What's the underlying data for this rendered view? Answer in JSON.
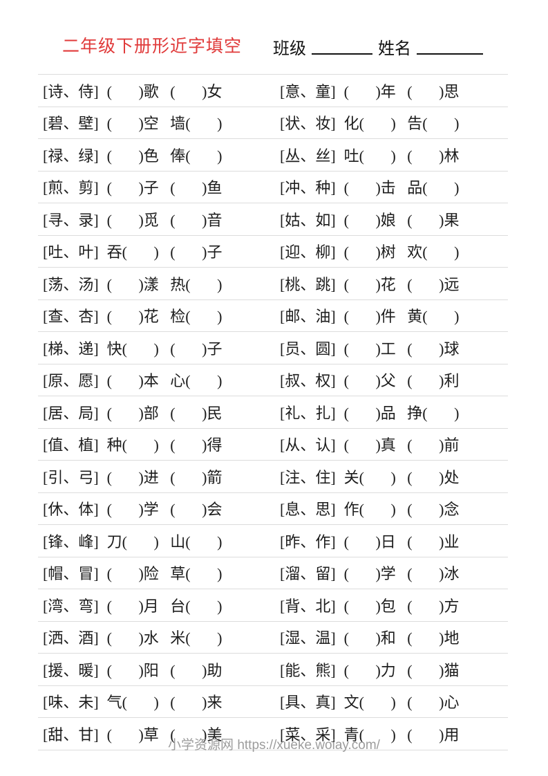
{
  "page": {
    "title": "二年级下册形近字填空",
    "class_label": "班级",
    "name_label": "姓名",
    "footer": "小学资源网 https://xueke.woiay.com/"
  },
  "colors": {
    "title_red": "#e03a3a",
    "rule_line": "#dcdcdc",
    "body_text": "#1c1c1c",
    "footer_gray": "#9c9c9c"
  },
  "rows": [
    {
      "lb": "[诗、侍]",
      "lc": "(       )歌   (       )女",
      "rb": "[意、童]",
      "rc": "(       )年   (       )思"
    },
    {
      "lb": "[碧、壁]",
      "lc": "(       )空   墙(       )",
      "rb": "[状、妆]",
      "rc": "化(       )   告(       )"
    },
    {
      "lb": "[禄、绿]",
      "lc": "(       )色   俸(       )",
      "rb": "[丛、丝]",
      "rc": "吐(       )   (       )林"
    },
    {
      "lb": "[煎、剪]",
      "lc": "(       )子   (       )鱼",
      "rb": "[冲、种]",
      "rc": "(       )击   品(       )"
    },
    {
      "lb": "[寻、录]",
      "lc": "(       )觅   (       )音",
      "rb": "[姑、如]",
      "rc": "(       )娘   (       )果"
    },
    {
      "lb": "[吐、叶]",
      "lc": "吞(       )   (       )子",
      "rb": "[迎、柳]",
      "rc": "(       )树   欢(       )"
    },
    {
      "lb": "[荡、汤]",
      "lc": "(       )漾   热(       )",
      "rb": "[桃、跳]",
      "rc": "(       )花   (       )远"
    },
    {
      "lb": "[查、杏]",
      "lc": "(       )花   检(       )",
      "rb": "[邮、油]",
      "rc": "(       )件   黄(       )"
    },
    {
      "lb": "[梯、递]",
      "lc": "快(       )   (       )子",
      "rb": "[员、圆]",
      "rc": "(       )工   (       )球"
    },
    {
      "lb": "[原、愿]",
      "lc": "(       )本   心(       )",
      "rb": "[叔、权]",
      "rc": "(       )父   (       )利"
    },
    {
      "lb": "[居、局]",
      "lc": "(       )部   (       )民",
      "rb": "[礼、扎]",
      "rc": "(       )品   挣(       )"
    },
    {
      "lb": "[值、植]",
      "lc": "种(       )   (       )得",
      "rb": "[从、认]",
      "rc": "(       )真   (       )前"
    },
    {
      "lb": "[引、弓]",
      "lc": "(       )进   (       )箭",
      "rb": "[注、住]",
      "rc": "关(       )   (       )处"
    },
    {
      "lb": "[休、体]",
      "lc": "(       )学   (       )会",
      "rb": "[息、思]",
      "rc": "作(       )   (       )念"
    },
    {
      "lb": "[锋、峰]",
      "lc": "刀(       )   山(       )",
      "rb": "[昨、作]",
      "rc": "(       )日   (       )业"
    },
    {
      "lb": "[帽、冒]",
      "lc": "(       )险   草(       )",
      "rb": "[溜、留]",
      "rc": "(       )学   (       )冰"
    },
    {
      "lb": "[湾、弯]",
      "lc": "(       )月   台(       )",
      "rb": "[背、北]",
      "rc": "(       )包   (       )方"
    },
    {
      "lb": "[洒、酒]",
      "lc": "(       )水   米(       )",
      "rb": "[湿、温]",
      "rc": "(       )和   (       )地"
    },
    {
      "lb": "[援、暖]",
      "lc": "(       )阳   (       )助",
      "rb": "[能、熊]",
      "rc": "(       )力   (       )猫"
    },
    {
      "lb": "[味、未]",
      "lc": "气(       )   (       )来",
      "rb": "[具、真]",
      "rc": "文(       )   (       )心"
    },
    {
      "lb": "[甜、甘]",
      "lc": "(       )草   (       )美",
      "rb": "[菜、采]",
      "rc": "青(       )   (       )用"
    }
  ]
}
